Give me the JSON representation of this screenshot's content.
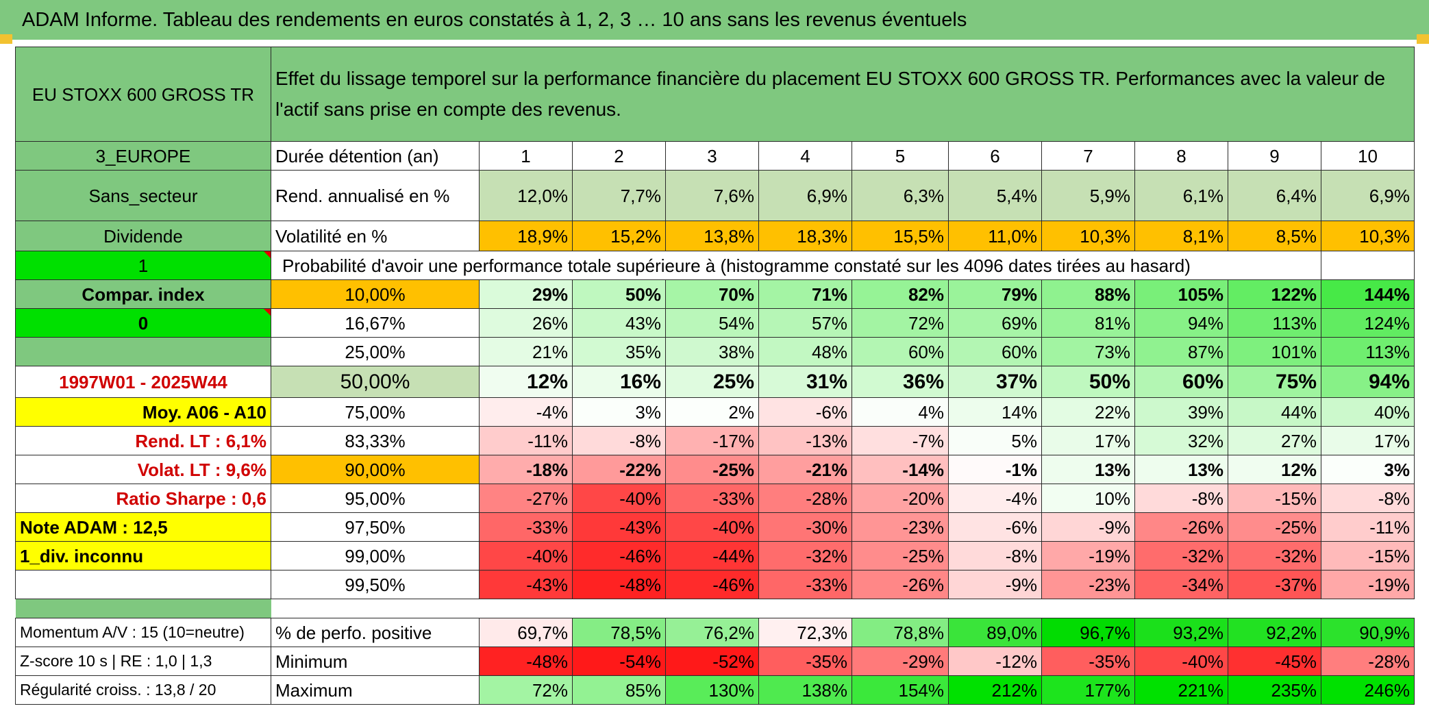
{
  "title": "ADAM Informe. Tableau des rendements en euros constatés à 1, 2, 3 … 10 ans sans les revenus éventuels",
  "colors": {
    "header_green": "#7fc87f",
    "light_green": "#c6e0b4",
    "yellow": "#ffff00",
    "orange": "#ffc000",
    "bright_green": "#00e000",
    "label_red": "#d00000"
  },
  "header": {
    "asset_name": "EU STOXX 600 GROSS TR",
    "description": "Effet du lissage temporel sur la performance financière du placement EU STOXX 600 GROSS TR. Performances avec la valeur de l'actif sans prise en compte des revenus."
  },
  "side": {
    "region": "3_EUROPE",
    "sector": "Sans_secteur",
    "dividend": "Dividende",
    "flag1": "1",
    "compar": "Compar. index",
    "flag0": "0",
    "period": "1997W01 - 2025W44",
    "moy": "Moy. A06 - A10",
    "rend_lt": "Rend. LT :   6,1%",
    "volat_lt": "Volat. LT :   9,6%",
    "sharpe": "Ratio Sharpe :   0,6",
    "note": "Note ADAM : 12,5",
    "div_info": "1_div. inconnu"
  },
  "labels": {
    "duration": "Durée détention (an)",
    "rend": "Rend. annualisé en %",
    "vol": "Volatilité en %",
    "prob": "Probabilité d'avoir une performance totale supérieure à (histogramme constaté sur les 4096 dates tirées au hasard)",
    "pos": "% de perfo. positive",
    "min": "Minimum",
    "max": "Maximum"
  },
  "footer": {
    "momentum": "Momentum A/V : 15 (10=neutre)",
    "zscore": "Z-score 10 s | RE : 1,0 | 1,3",
    "regularite": "Régularité croiss. : 13,8 / 20"
  },
  "years": [
    "1",
    "2",
    "3",
    "4",
    "5",
    "6",
    "7",
    "8",
    "9",
    "10"
  ],
  "rend": [
    "12,0%",
    "7,7%",
    "7,6%",
    "6,9%",
    "6,3%",
    "5,4%",
    "5,9%",
    "6,1%",
    "6,4%",
    "6,9%"
  ],
  "vol": [
    "18,9%",
    "15,2%",
    "13,8%",
    "18,3%",
    "15,5%",
    "11,0%",
    "10,3%",
    "8,1%",
    "8,5%",
    "10,3%"
  ],
  "percentiles": [
    {
      "p": "10,00%",
      "vals": [
        "29%",
        "50%",
        "70%",
        "71%",
        "82%",
        "79%",
        "88%",
        "105%",
        "122%",
        "144%"
      ]
    },
    {
      "p": "16,67%",
      "vals": [
        "26%",
        "43%",
        "54%",
        "57%",
        "72%",
        "69%",
        "81%",
        "94%",
        "113%",
        "124%"
      ]
    },
    {
      "p": "25,00%",
      "vals": [
        "21%",
        "35%",
        "38%",
        "48%",
        "60%",
        "60%",
        "73%",
        "87%",
        "101%",
        "113%"
      ]
    },
    {
      "p": "50,00%",
      "vals": [
        "12%",
        "16%",
        "25%",
        "31%",
        "36%",
        "37%",
        "50%",
        "60%",
        "75%",
        "94%"
      ]
    },
    {
      "p": "75,00%",
      "vals": [
        "-4%",
        "3%",
        "2%",
        "-6%",
        "4%",
        "14%",
        "22%",
        "39%",
        "44%",
        "40%"
      ]
    },
    {
      "p": "83,33%",
      "vals": [
        "-11%",
        "-8%",
        "-17%",
        "-13%",
        "-7%",
        "5%",
        "17%",
        "32%",
        "27%",
        "17%"
      ]
    },
    {
      "p": "90,00%",
      "vals": [
        "-18%",
        "-22%",
        "-25%",
        "-21%",
        "-14%",
        "-1%",
        "13%",
        "13%",
        "12%",
        "3%"
      ]
    },
    {
      "p": "95,00%",
      "vals": [
        "-27%",
        "-40%",
        "-33%",
        "-28%",
        "-20%",
        "-4%",
        "10%",
        "-8%",
        "-15%",
        "-8%"
      ]
    },
    {
      "p": "97,50%",
      "vals": [
        "-33%",
        "-43%",
        "-40%",
        "-30%",
        "-23%",
        "-6%",
        "-9%",
        "-26%",
        "-25%",
        "-11%"
      ]
    },
    {
      "p": "99,00%",
      "vals": [
        "-40%",
        "-46%",
        "-44%",
        "-32%",
        "-25%",
        "-8%",
        "-19%",
        "-32%",
        "-32%",
        "-15%"
      ]
    },
    {
      "p": "99,50%",
      "vals": [
        "-43%",
        "-48%",
        "-46%",
        "-33%",
        "-26%",
        "-9%",
        "-23%",
        "-34%",
        "-37%",
        "-19%"
      ]
    }
  ],
  "pos": [
    "69,7%",
    "78,5%",
    "76,2%",
    "72,3%",
    "78,8%",
    "89,0%",
    "96,7%",
    "93,2%",
    "92,2%",
    "90,9%"
  ],
  "min": [
    "-48%",
    "-54%",
    "-52%",
    "-35%",
    "-29%",
    "-12%",
    "-35%",
    "-40%",
    "-45%",
    "-28%"
  ],
  "max": [
    "72%",
    "85%",
    "130%",
    "138%",
    "154%",
    "212%",
    "177%",
    "221%",
    "235%",
    "246%"
  ]
}
